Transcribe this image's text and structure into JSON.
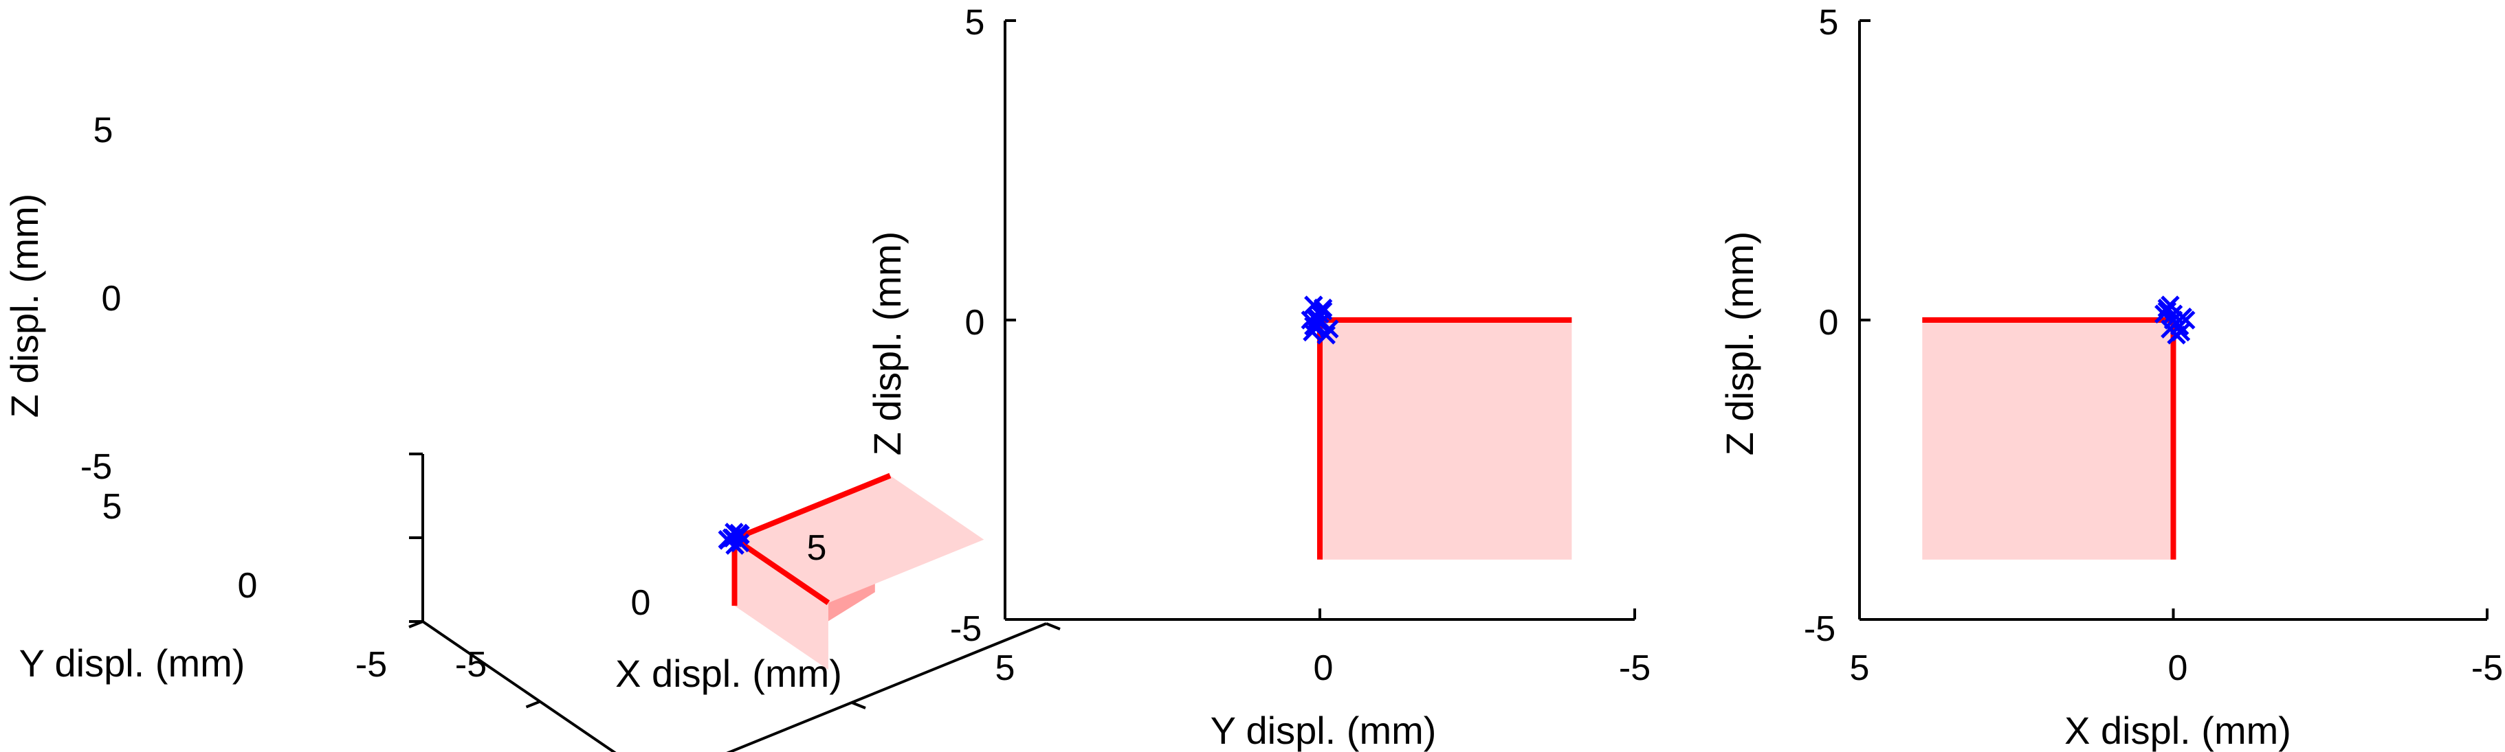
{
  "colors": {
    "axis": "#000000",
    "guide_line": "#ff0000",
    "guide_plane": "#ffd5d5",
    "guide_plane_dark": "#ff9f9f",
    "markers": "#0000ff"
  },
  "chart_data": [
    {
      "type": "scatter",
      "view": "3d",
      "xlabel": "X displ. (mm)",
      "ylabel": "Y displ. (mm)",
      "zlabel": "Z displ. (mm)",
      "xlim": [
        -5,
        5
      ],
      "ylim": [
        -5,
        5
      ],
      "zlim": [
        -5,
        5
      ],
      "x_ticks": [
        "-5",
        "0",
        "5"
      ],
      "y_ticks": [
        "5",
        "0",
        "-5"
      ],
      "z_ticks": [
        "5",
        "0",
        "-5"
      ],
      "grid": false,
      "points": [
        {
          "x": 0.0,
          "y": 0.05,
          "z": 0.0
        },
        {
          "x": 0.1,
          "y": -0.05,
          "z": 0.15
        },
        {
          "x": -0.1,
          "y": 0.1,
          "z": -0.1
        },
        {
          "x": 0.05,
          "y": 0.1,
          "z": 0.25
        },
        {
          "x": -0.05,
          "y": -0.1,
          "z": -0.25
        },
        {
          "x": 0.15,
          "y": 0.0,
          "z": 0.1
        },
        {
          "x": -0.15,
          "y": 0.05,
          "z": 0.05
        },
        {
          "x": 0.05,
          "y": -0.15,
          "z": -0.15
        },
        {
          "x": 0.2,
          "y": 0.15,
          "z": 0.0
        },
        {
          "x": -0.1,
          "y": -0.05,
          "z": 0.2
        }
      ]
    },
    {
      "type": "scatter",
      "view": "YZ",
      "xlabel": "Y displ. (mm)",
      "ylabel": "Z displ. (mm)",
      "xlim": [
        5,
        -5
      ],
      "ylim": [
        -5,
        5
      ],
      "x_ticks": [
        "5",
        "0",
        "-5"
      ],
      "y_ticks": [
        "5",
        "0",
        "-5"
      ],
      "grid": false,
      "guide_region": {
        "x": [
          0,
          -4
        ],
        "y": [
          -4,
          0
        ]
      },
      "points": [
        {
          "x": 0.05,
          "y": 0.0
        },
        {
          "x": -0.05,
          "y": 0.15
        },
        {
          "x": 0.1,
          "y": -0.1
        },
        {
          "x": 0.1,
          "y": 0.25
        },
        {
          "x": -0.1,
          "y": -0.25
        },
        {
          "x": 0.0,
          "y": 0.1
        },
        {
          "x": 0.05,
          "y": 0.05
        },
        {
          "x": -0.15,
          "y": -0.15
        },
        {
          "x": 0.15,
          "y": 0.0
        },
        {
          "x": -0.05,
          "y": 0.2
        },
        {
          "x": 0.0,
          "y": -0.05
        },
        {
          "x": 0.12,
          "y": -0.2
        }
      ]
    },
    {
      "type": "scatter",
      "view": "XZ",
      "xlabel": "X displ. (mm)",
      "ylabel": "Z displ. (mm)",
      "xlim": [
        5,
        -5
      ],
      "ylim": [
        -5,
        5
      ],
      "x_ticks": [
        "5",
        "0",
        "-5"
      ],
      "y_ticks": [
        "5",
        "0",
        "-5"
      ],
      "grid": false,
      "guide_region": {
        "x": [
          4,
          0
        ],
        "y": [
          -4,
          0
        ]
      },
      "points": [
        {
          "x": 0.0,
          "y": 0.0
        },
        {
          "x": 0.1,
          "y": 0.15
        },
        {
          "x": -0.1,
          "y": -0.1
        },
        {
          "x": 0.05,
          "y": 0.25
        },
        {
          "x": -0.05,
          "y": -0.25
        },
        {
          "x": 0.15,
          "y": 0.1
        },
        {
          "x": -0.15,
          "y": 0.05
        },
        {
          "x": 0.05,
          "y": -0.15
        },
        {
          "x": -0.2,
          "y": 0.0
        },
        {
          "x": 0.1,
          "y": 0.2
        },
        {
          "x": -0.12,
          "y": -0.2
        },
        {
          "x": 0.0,
          "y": 0.1
        }
      ]
    }
  ]
}
